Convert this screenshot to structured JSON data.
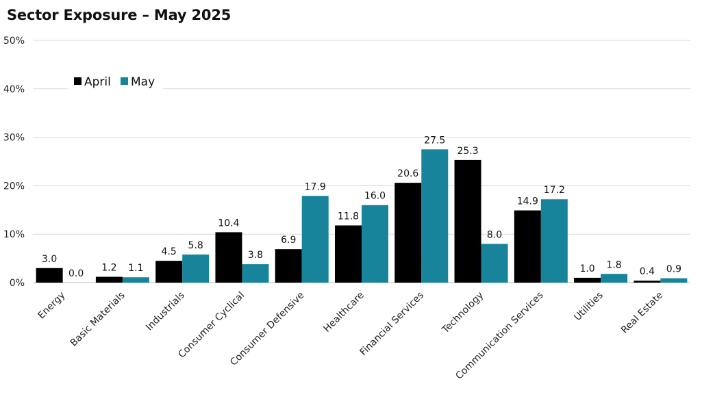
{
  "chart_data": {
    "type": "bar",
    "title": "Sector Exposure – May 2025",
    "categories": [
      "Energy",
      "Basic Materials",
      "Industrials",
      "Consumer Cyclical",
      "Consumer Defensive",
      "Healthcare",
      "Financial Services",
      "Technology",
      "Communication Services",
      "Utilities",
      "Real Estate"
    ],
    "series": [
      {
        "name": "April",
        "color": "#000000",
        "values": [
          3.0,
          1.2,
          4.5,
          10.4,
          6.9,
          11.8,
          20.6,
          25.3,
          14.9,
          1.0,
          0.4
        ]
      },
      {
        "name": "May",
        "color": "#17849c",
        "values": [
          0.0,
          1.1,
          5.8,
          3.8,
          17.9,
          16.0,
          27.5,
          8.0,
          17.2,
          1.8,
          0.9
        ]
      }
    ],
    "ylim": [
      0,
      50
    ],
    "yticks": [
      0,
      10,
      20,
      30,
      40,
      50
    ],
    "ytick_labels": [
      "0%",
      "10%",
      "20%",
      "30%",
      "40%",
      "50%"
    ],
    "data_labels": [
      [
        "3.0",
        "1.2",
        "4.5",
        "10.4",
        "6.9",
        "11.8",
        "20.6",
        "25.3",
        "14.9",
        "1.0",
        "0.4"
      ],
      [
        "0.0",
        "1.1",
        "5.8",
        "3.8",
        "17.9",
        "16.0",
        "27.5",
        "8.0",
        "17.2",
        "1.8",
        "0.9"
      ]
    ],
    "grid": true,
    "legend_position": "top-left"
  }
}
